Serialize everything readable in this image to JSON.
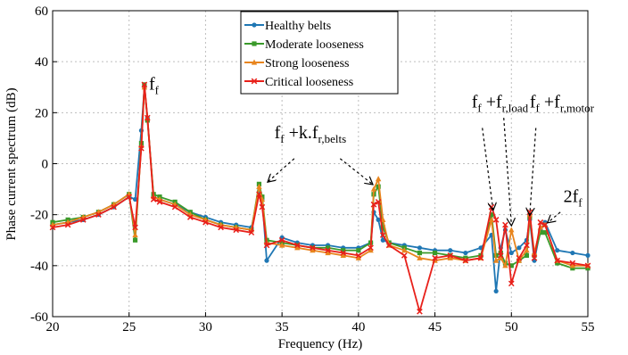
{
  "chart_data": {
    "type": "line",
    "xlabel": "Frequency (Hz)",
    "ylabel": "Phase current spectrum (dB)",
    "xlim": [
      20,
      55
    ],
    "ylim": [
      -60,
      60
    ],
    "xticks": [
      20,
      25,
      30,
      35,
      40,
      45,
      50,
      55
    ],
    "yticks": [
      -60,
      -40,
      -20,
      0,
      20,
      40,
      60
    ],
    "grid": true,
    "legend": "top-center",
    "series": [
      {
        "name": "Healthy belts",
        "color": "#1f77b4",
        "marker": "circle",
        "x": [
          20,
          21,
          22,
          23,
          24,
          25,
          25.4,
          25.8,
          26,
          26.2,
          26.6,
          27,
          28,
          29,
          30,
          31,
          32,
          33,
          33.5,
          33.7,
          34,
          35,
          36,
          37,
          38,
          39,
          40,
          40.8,
          41,
          41.3,
          41.6,
          42,
          43,
          44,
          45,
          46,
          47,
          48,
          48.7,
          49,
          49.3,
          49.6,
          50,
          50.5,
          51,
          51.2,
          51.5,
          51.9,
          52.2,
          53,
          54,
          55
        ],
        "y": [
          -24,
          -23,
          -22,
          -20,
          -17,
          -13,
          -14,
          13,
          30,
          18,
          -13,
          -14,
          -16,
          -19,
          -21,
          -23,
          -24,
          -25,
          -11,
          -14,
          -38,
          -29,
          -31,
          -32,
          -32,
          -33,
          -33,
          -31,
          -19,
          -22,
          -30,
          -31,
          -32,
          -33,
          -34,
          -34,
          -35,
          -33,
          -28,
          -50,
          -33,
          -26,
          -35,
          -33,
          -30,
          -22,
          -38,
          -26,
          -23,
          -34,
          -35,
          -36
        ]
      },
      {
        "name": "Moderate looseness",
        "color": "#3a9a2a",
        "marker": "square",
        "x": [
          20,
          21,
          22,
          23,
          24,
          25,
          25.4,
          25.8,
          26,
          26.2,
          26.6,
          27,
          28,
          29,
          30,
          31,
          32,
          33,
          33.5,
          33.7,
          34,
          35,
          36,
          37,
          38,
          39,
          40,
          40.8,
          41,
          41.3,
          41.6,
          42,
          43,
          44,
          45,
          46,
          47,
          48,
          48.7,
          49,
          49.3,
          49.6,
          50,
          50.5,
          51,
          51.2,
          51.5,
          51.9,
          52.2,
          53,
          54,
          55
        ],
        "y": [
          -23,
          -22,
          -21,
          -19,
          -16,
          -12,
          -30,
          8,
          31,
          17,
          -12,
          -13,
          -15,
          -19,
          -22,
          -24,
          -25,
          -26,
          -8,
          -13,
          -30,
          -31,
          -32,
          -33,
          -33,
          -34,
          -34,
          -31,
          -12,
          -9,
          -25,
          -31,
          -33,
          -35,
          -35,
          -36,
          -37,
          -36,
          -20,
          -36,
          -35,
          -39,
          -40,
          -38,
          -36,
          -21,
          -36,
          -27,
          -27,
          -39,
          -41,
          -41
        ]
      },
      {
        "name": "Strong looseness",
        "color": "#e8851e",
        "marker": "triangle",
        "x": [
          20,
          21,
          22,
          23,
          24,
          25,
          25.4,
          25.8,
          26,
          26.2,
          26.6,
          27,
          28,
          29,
          30,
          31,
          32,
          33,
          33.5,
          33.7,
          34,
          35,
          36,
          37,
          38,
          39,
          40,
          40.8,
          41,
          41.3,
          41.6,
          42,
          43,
          44,
          45,
          46,
          47,
          48,
          48.7,
          49,
          49.3,
          49.6,
          50,
          50.5,
          51,
          51.2,
          51.5,
          51.9,
          52.2,
          53,
          54,
          55
        ],
        "y": [
          -24,
          -23,
          -21,
          -19,
          -16,
          -12,
          -28,
          7,
          30,
          18,
          -13,
          -14,
          -16,
          -20,
          -22,
          -24,
          -25,
          -26,
          -9,
          -14,
          -31,
          -32,
          -33,
          -34,
          -35,
          -36,
          -37,
          -34,
          -10,
          -6,
          -22,
          -32,
          -34,
          -37,
          -38,
          -37,
          -38,
          -37,
          -22,
          -38,
          -37,
          -40,
          -26,
          -38,
          -34,
          -20,
          -35,
          -25,
          -24,
          -38,
          -40,
          -40
        ]
      },
      {
        "name": "Critical looseness",
        "color": "#e8201a",
        "marker": "x",
        "x": [
          20,
          21,
          22,
          23,
          24,
          25,
          25.4,
          25.8,
          26,
          26.2,
          26.6,
          27,
          28,
          29,
          30,
          31,
          32,
          33,
          33.5,
          33.7,
          34,
          35,
          36,
          37,
          38,
          39,
          40,
          40.8,
          41,
          41.3,
          41.6,
          42,
          43,
          44,
          45,
          46,
          47,
          48,
          48.7,
          49,
          49.3,
          49.6,
          50,
          50.5,
          51,
          51.2,
          51.5,
          51.9,
          52.2,
          53,
          54,
          55
        ],
        "y": [
          -25,
          -24,
          -22,
          -20,
          -17,
          -13,
          -25,
          6,
          31,
          18,
          -14,
          -15,
          -17,
          -21,
          -23,
          -25,
          -26,
          -27,
          -12,
          -17,
          -32,
          -30,
          -32,
          -33,
          -34,
          -35,
          -36,
          -33,
          -16,
          -15,
          -28,
          -32,
          -36,
          -58,
          -37,
          -36,
          -38,
          -37,
          -17,
          -22,
          -36,
          -24,
          -47,
          -37,
          -32,
          -19,
          -37,
          -23,
          -24,
          -38,
          -39,
          -40
        ]
      }
    ],
    "annotations": [
      {
        "main": "f",
        "sub": "f",
        "x": 26.3,
        "y": 29
      },
      {
        "main": "f",
        "sub": "f",
        "tail": " +k.f",
        "tail_sub": "r,belts",
        "x": 34.5,
        "y": 10
      },
      {
        "main": "f",
        "sub": "f",
        "tail": " +f",
        "tail_sub": "r,load",
        "x": 47.4,
        "y": 22
      },
      {
        "main": "f",
        "sub": "f",
        "tail": " +f",
        "tail_sub": "r,motor",
        "x": 51.2,
        "y": 22
      },
      {
        "main": "2f",
        "sub": "f",
        "x": 53.4,
        "y": -15
      }
    ]
  }
}
